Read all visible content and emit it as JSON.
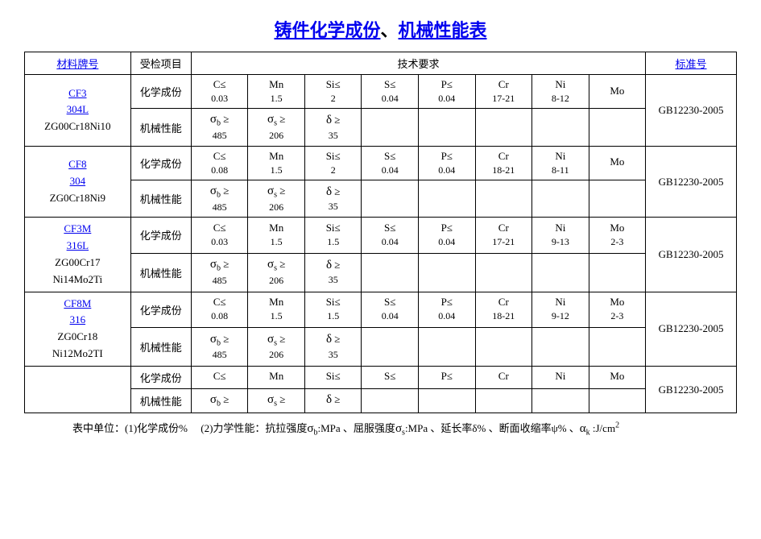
{
  "title_part1": "铸件化学成份",
  "title_sep": "、",
  "title_part2": "机械性能表",
  "headers": {
    "material": "材料牌号",
    "inspection": "受检项目",
    "requirement": "技术要求",
    "standard": "标准号"
  },
  "row_labels": {
    "chem": "化学成份",
    "mech": "机械性能"
  },
  "chem_headers": {
    "c": "C≤",
    "mn": "Mn",
    "si": "Si≤",
    "s": "S≤",
    "p": "P≤",
    "cr": "Cr",
    "ni": "Ni",
    "mo": "Mo"
  },
  "mech_headers": {
    "sigma_b": "σ",
    "sigma_b_sub": "b",
    "ge": "≥",
    "sigma_s": "σ",
    "sigma_s_sub": "s",
    "delta": "δ"
  },
  "rows": [
    {
      "grades": [
        "CF3",
        "304L"
      ],
      "grades_plain": [
        "ZG00Cr18Ni10"
      ],
      "chem": {
        "c": "0.03",
        "mn": "1.5",
        "si": "2",
        "s": "0.04",
        "p": "0.04",
        "cr": "17-21",
        "ni": "8-12",
        "mo": ""
      },
      "mech": {
        "sb": "485",
        "ss": "206",
        "d": "35"
      },
      "standard": "GB12230-2005"
    },
    {
      "grades": [
        "CF8",
        "304"
      ],
      "grades_plain": [
        "ZG0Cr18Ni9"
      ],
      "chem": {
        "c": "0.08",
        "mn": "1.5",
        "si": "2",
        "s": "0.04",
        "p": "0.04",
        "cr": "18-21",
        "ni": "8-11",
        "mo": ""
      },
      "mech": {
        "sb": "485",
        "ss": "206",
        "d": "35"
      },
      "standard": "GB12230-2005"
    },
    {
      "grades": [
        "CF3M",
        "316L"
      ],
      "grades_plain": [
        "ZG00Cr17",
        "Ni14Mo2Ti"
      ],
      "chem": {
        "c": "0.03",
        "mn": "1.5",
        "si": "1.5",
        "s": "0.04",
        "p": "0.04",
        "cr": "17-21",
        "ni": "9-13",
        "mo": "2-3"
      },
      "mech": {
        "sb": "485",
        "ss": "206",
        "d": "35"
      },
      "standard": "GB12230-2005"
    },
    {
      "grades": [
        "CF8M",
        "316"
      ],
      "grades_plain": [
        "ZG0Cr18",
        "Ni12Mo2TI"
      ],
      "chem": {
        "c": "0.08",
        "mn": "1.5",
        "si": "1.5",
        "s": "0.04",
        "p": "0.04",
        "cr": "18-21",
        "ni": "9-12",
        "mo": "2-3"
      },
      "mech": {
        "sb": "485",
        "ss": "206",
        "d": "35"
      },
      "standard": "GB12230-2005"
    },
    {
      "grades": [],
      "grades_plain": [],
      "chem": {
        "c": "",
        "mn": "",
        "si": "",
        "s": "",
        "p": "",
        "cr": "",
        "ni": "",
        "mo": ""
      },
      "mech": {
        "sb": "",
        "ss": "",
        "d": ""
      },
      "standard": "GB12230-2005"
    }
  ],
  "footer": {
    "prefix": "表中单位：(1)化学成份%",
    "mech_label": "(2)力学性能：抗拉强度",
    "sb": "σ",
    "sb_sub": "b",
    "sb_unit": ":MPa 、屈服强度",
    "ss": "σ",
    "ss_sub": "s",
    "ss_unit": ":MPa 、延长率δ% 、断面收缩率ψ% 、",
    "ak": "α",
    "ak_sub": "k",
    "ak_unit": " :J/cm",
    "ak_sup": "2"
  }
}
